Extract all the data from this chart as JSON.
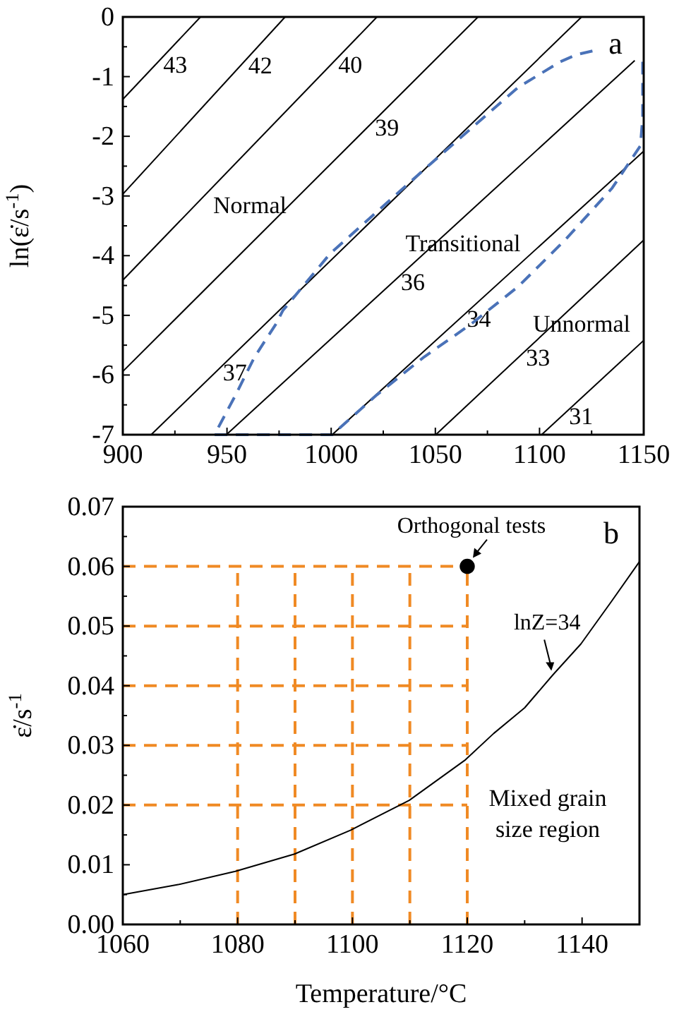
{
  "chart_data": [
    {
      "type": "line",
      "ylabel": "ln(ε̇/s$^{-1}$)",
      "xlim": [
        900,
        1150
      ],
      "ylim": [
        -7,
        0
      ],
      "xticks": [
        900,
        {
          "value": 925,
          "label": null
        },
        950,
        {
          "value": 975,
          "label": null
        },
        1000,
        {
          "value": 1025,
          "label": null
        },
        1050,
        {
          "value": 1075,
          "label": null
        },
        1100,
        {
          "value": 1125,
          "label": null
        },
        1150
      ],
      "yticks": [
        -7,
        {
          "value": -6.5,
          "label": null
        },
        -6,
        {
          "value": -5.5,
          "label": null
        },
        -5,
        {
          "value": -4.5,
          "label": null
        },
        -4,
        {
          "value": -3.5,
          "label": null
        },
        -3,
        {
          "value": -2.5,
          "label": null
        },
        -2,
        {
          "value": -1.5,
          "label": null
        },
        -1,
        {
          "value": -0.5,
          "label": null
        },
        0
      ],
      "series": [
        {
          "name": "43",
          "color": "#000000",
          "x": [
            900,
            937.3
          ],
          "values": [
            -1.38,
            0
          ]
        },
        {
          "name": "42",
          "color": "#000000",
          "x": [
            900,
            977.9
          ],
          "values": [
            -2.97,
            0
          ]
        },
        {
          "name": "40",
          "color": "#000000",
          "x": [
            900,
            1022
          ],
          "values": [
            -4.41,
            0
          ]
        },
        {
          "name": "39",
          "color": "#000000",
          "x": [
            900,
            1070.5
          ],
          "values": [
            -5.94,
            0
          ]
        },
        {
          "name": "37",
          "color": "#000000",
          "x": [
            913.6,
            1120.2
          ],
          "values": [
            -7,
            0
          ]
        },
        {
          "name": "36",
          "color": "#000000",
          "x": [
            949.7,
            1145.7
          ],
          "values": [
            -7,
            -0.73
          ]
        },
        {
          "name": "34",
          "color": "#000000",
          "x": [
            1000.5,
            1150
          ],
          "values": [
            -7,
            -2.25
          ]
        },
        {
          "name": "33",
          "color": "#000000",
          "x": [
            1050.2,
            1150
          ],
          "values": [
            -7,
            -3.74
          ]
        },
        {
          "name": "31",
          "color": "#000000",
          "x": [
            1101,
            1150
          ],
          "values": [
            -7,
            -5.42
          ]
        },
        {
          "color": "#4a72b8",
          "line_style": "dashed",
          "x": [
            1149.5,
            1149.5,
            1148.4,
            1134.8,
            1112.2,
            1089.7,
            1067,
            1044.5,
            1022,
            1000.5,
            944,
            954.2,
            963.2,
            973.4,
            976.8,
            999.4,
            1044.5,
            1089.7,
            1110,
            1117.9,
            1125.4
          ],
          "values": [
            -0.75,
            -1.69,
            -2.16,
            -2.87,
            -3.74,
            -4.52,
            -5.15,
            -5.7,
            -6.33,
            -7,
            -7,
            -6.33,
            -5.7,
            -5.15,
            -4.92,
            -3.97,
            -2.56,
            -1.18,
            -0.75,
            -0.63,
            -0.57
          ]
        }
      ],
      "annotations": [
        "a",
        "Normal",
        "Transitional",
        "Unnormal"
      ]
    },
    {
      "type": "line",
      "xlabel": "Temperature/°C",
      "ylabel": "ε̇/s$^{-1}$",
      "xlim": [
        1060,
        1150
      ],
      "ylim": [
        0,
        0.07
      ],
      "xticks": [
        1060,
        {
          "value": 1070,
          "label": null
        },
        1080,
        {
          "value": 1090,
          "label": null
        },
        1100,
        {
          "value": 1110,
          "label": null
        },
        1120,
        {
          "value": 1130,
          "label": null
        },
        1140
      ],
      "yticks": [
        {
          "value": 0,
          "label": "0.00"
        },
        {
          "value": 0.005,
          "label": null
        },
        {
          "value": 0.01,
          "label": "0.01"
        },
        {
          "value": 0.015,
          "label": null
        },
        {
          "value": 0.02,
          "label": "0.02"
        },
        {
          "value": 0.025,
          "label": null
        },
        {
          "value": 0.03,
          "label": "0.03"
        },
        {
          "value": 0.035,
          "label": null
        },
        {
          "value": 0.04,
          "label": "0.04"
        },
        {
          "value": 0.045,
          "label": null
        },
        {
          "value": 0.05,
          "label": "0.05"
        },
        {
          "value": 0.055,
          "label": null
        },
        {
          "value": 0.06,
          "label": "0.06"
        },
        {
          "value": 0.065,
          "label": null
        },
        {
          "value": 0.07,
          "label": "0.07"
        }
      ],
      "series": [
        {
          "color": "#f08a24",
          "line_style": "dashed",
          "x": [
            1080,
            1080
          ],
          "values": [
            0,
            0.06
          ]
        },
        {
          "color": "#f08a24",
          "line_style": "dashed",
          "x": [
            1090,
            1090
          ],
          "values": [
            0,
            0.06
          ]
        },
        {
          "color": "#f08a24",
          "line_style": "dashed",
          "x": [
            1100,
            1100
          ],
          "values": [
            0,
            0.06
          ]
        },
        {
          "color": "#f08a24",
          "line_style": "dashed",
          "x": [
            1110,
            1110
          ],
          "values": [
            0,
            0.06
          ]
        },
        {
          "color": "#f08a24",
          "line_style": "dashed",
          "x": [
            1120,
            1120
          ],
          "values": [
            0,
            0.06
          ]
        },
        {
          "color": "#f08a24",
          "line_style": "dashed",
          "x": [
            1060,
            1120
          ],
          "values": [
            0.02,
            0.02
          ]
        },
        {
          "color": "#f08a24",
          "line_style": "dashed",
          "x": [
            1060,
            1120
          ],
          "values": [
            0.03,
            0.03
          ]
        },
        {
          "color": "#f08a24",
          "line_style": "dashed",
          "x": [
            1060,
            1120
          ],
          "values": [
            0.04,
            0.04
          ]
        },
        {
          "color": "#f08a24",
          "line_style": "dashed",
          "x": [
            1060,
            1120
          ],
          "values": [
            0.05,
            0.05
          ]
        },
        {
          "color": "#f08a24",
          "line_style": "dashed",
          "x": [
            1060,
            1120
          ],
          "values": [
            0.06,
            0.06
          ]
        },
        {
          "name": "lnZ=34",
          "color": "#000000",
          "x": [
            1060,
            1069.8,
            1079.6,
            1089.9,
            1099.7,
            1109.9,
            1119.7,
            1124.6,
            1130,
            1134.9,
            1139.8,
            1145.1,
            1150
          ],
          "values": [
            0.005,
            0.0067,
            0.0089,
            0.0118,
            0.0158,
            0.0208,
            0.0276,
            0.032,
            0.0363,
            0.0418,
            0.047,
            0.0541,
            0.0608
          ]
        },
        {
          "name": "Orthogonal tests",
          "type": "scatter",
          "marker": "circle",
          "color": "#000000",
          "x": [
            1120
          ],
          "values": [
            0.06
          ]
        }
      ],
      "annotations": [
        "b",
        "Mixed grain size region"
      ]
    }
  ]
}
